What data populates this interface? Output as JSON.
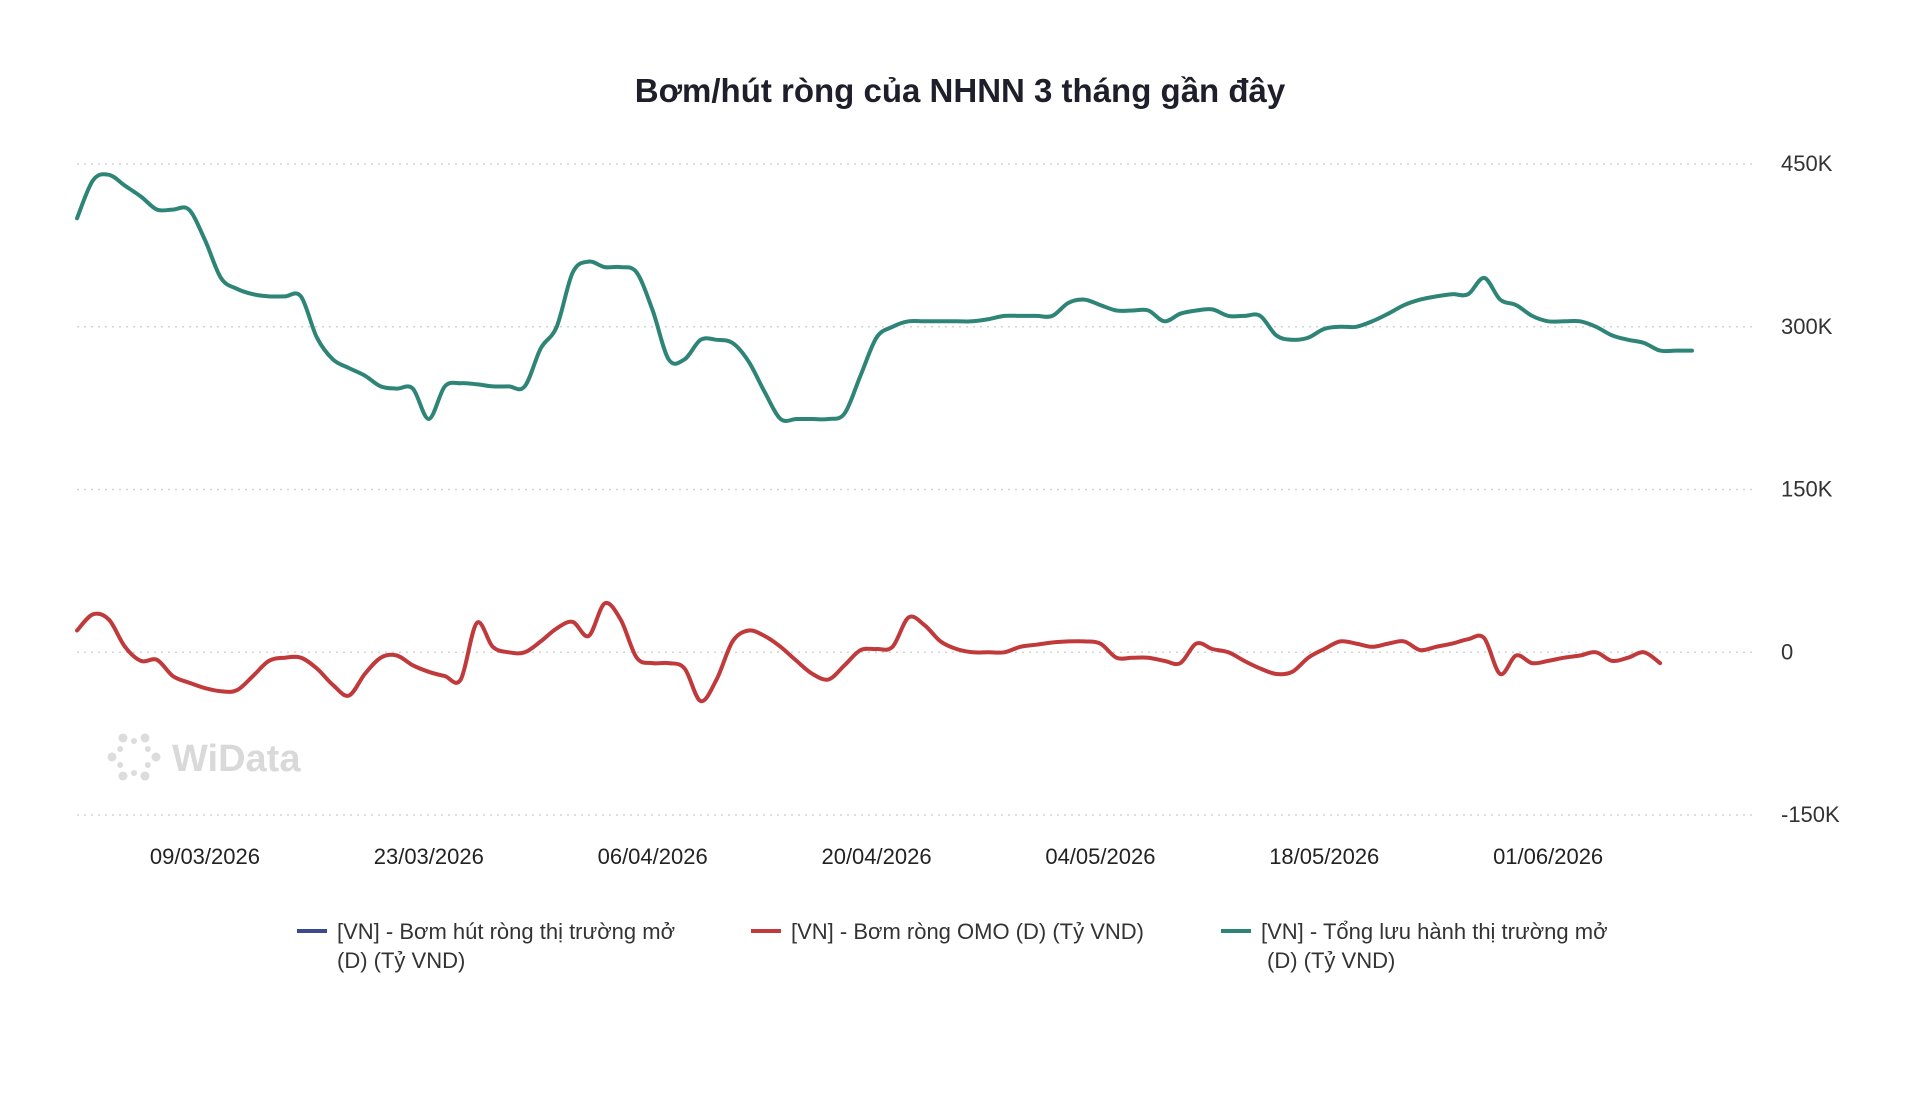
{
  "chart_data": {
    "type": "line",
    "title": "Bơm/hút ròng của NHNN 3 tháng gần đây",
    "y_ticks": [
      {
        "value": 450000,
        "label": "450K"
      },
      {
        "value": 300000,
        "label": "300K"
      },
      {
        "value": 150000,
        "label": "150K"
      },
      {
        "value": 0,
        "label": "0"
      },
      {
        "value": -150000,
        "label": "-150K"
      }
    ],
    "ylim": [
      -150000,
      450000
    ],
    "x_tick_labels": [
      "09/03/2026",
      "23/03/2026",
      "06/04/2026",
      "20/04/2026",
      "04/05/2026",
      "18/05/2026",
      "01/06/2026"
    ],
    "x_tick_dates": [
      "2026-03-09",
      "2026-03-23",
      "2026-04-06",
      "2026-04-20",
      "2026-05-04",
      "2026-05-18",
      "2026-06-01"
    ],
    "xlim": [
      "2026-03-01",
      "2026-06-14"
    ],
    "grid": "horizontal-dotted",
    "legend_position": "bottom",
    "watermark": "WiData",
    "series": [
      {
        "name": "[VN] - Bơm hút ròng thị trường mở (D) (Tỷ VND)",
        "legend_lines": [
          "[VN] - Bơm hút ròng thị trường mở",
          "(D) (Tỷ VND)"
        ],
        "color": "#3b4a8c",
        "points": []
      },
      {
        "name": "[VN] - Bơm ròng OMO (D) (Tỷ VND)",
        "legend_lines": [
          "[VN] - Bơm ròng OMO (D) (Tỷ VND)"
        ],
        "color": "#c0393b",
        "points": [
          [
            "2026-03-01",
            20000
          ],
          [
            "2026-03-02",
            35000
          ],
          [
            "2026-03-03",
            30000
          ],
          [
            "2026-03-04",
            5000
          ],
          [
            "2026-03-05",
            -8000
          ],
          [
            "2026-03-06",
            -7000
          ],
          [
            "2026-03-07",
            -22000
          ],
          [
            "2026-03-08",
            -28000
          ],
          [
            "2026-03-09",
            -33000
          ],
          [
            "2026-03-10",
            -36000
          ],
          [
            "2026-03-11",
            -35000
          ],
          [
            "2026-03-12",
            -22000
          ],
          [
            "2026-03-13",
            -8000
          ],
          [
            "2026-03-14",
            -5000
          ],
          [
            "2026-03-15",
            -5000
          ],
          [
            "2026-03-16",
            -15000
          ],
          [
            "2026-03-17",
            -30000
          ],
          [
            "2026-03-18",
            -40000
          ],
          [
            "2026-03-19",
            -20000
          ],
          [
            "2026-03-20",
            -5000
          ],
          [
            "2026-03-21",
            -3000
          ],
          [
            "2026-03-22",
            -12000
          ],
          [
            "2026-03-23",
            -18000
          ],
          [
            "2026-03-24",
            -22000
          ],
          [
            "2026-03-25",
            -25000
          ],
          [
            "2026-03-26",
            27000
          ],
          [
            "2026-03-27",
            5000
          ],
          [
            "2026-03-28",
            0
          ],
          [
            "2026-03-29",
            0
          ],
          [
            "2026-03-30",
            10000
          ],
          [
            "2026-03-31",
            22000
          ],
          [
            "2026-04-01",
            28000
          ],
          [
            "2026-04-02",
            15000
          ],
          [
            "2026-04-03",
            45000
          ],
          [
            "2026-04-04",
            30000
          ],
          [
            "2026-04-05",
            -5000
          ],
          [
            "2026-04-06",
            -10000
          ],
          [
            "2026-04-07",
            -10000
          ],
          [
            "2026-04-08",
            -15000
          ],
          [
            "2026-04-09",
            -45000
          ],
          [
            "2026-04-10",
            -25000
          ],
          [
            "2026-04-11",
            10000
          ],
          [
            "2026-04-12",
            20000
          ],
          [
            "2026-04-13",
            15000
          ],
          [
            "2026-04-14",
            5000
          ],
          [
            "2026-04-15",
            -8000
          ],
          [
            "2026-04-16",
            -20000
          ],
          [
            "2026-04-17",
            -25000
          ],
          [
            "2026-04-18",
            -12000
          ],
          [
            "2026-04-19",
            2000
          ],
          [
            "2026-04-20",
            3000
          ],
          [
            "2026-04-21",
            5000
          ],
          [
            "2026-04-22",
            32000
          ],
          [
            "2026-04-23",
            25000
          ],
          [
            "2026-04-24",
            10000
          ],
          [
            "2026-04-25",
            3000
          ],
          [
            "2026-04-26",
            0
          ],
          [
            "2026-04-27",
            0
          ],
          [
            "2026-04-28",
            0
          ],
          [
            "2026-04-29",
            5000
          ],
          [
            "2026-04-30",
            7000
          ],
          [
            "2026-05-01",
            9000
          ],
          [
            "2026-05-02",
            10000
          ],
          [
            "2026-05-03",
            10000
          ],
          [
            "2026-05-04",
            8000
          ],
          [
            "2026-05-05",
            -5000
          ],
          [
            "2026-05-06",
            -5000
          ],
          [
            "2026-05-07",
            -5000
          ],
          [
            "2026-05-08",
            -8000
          ],
          [
            "2026-05-09",
            -10000
          ],
          [
            "2026-05-10",
            8000
          ],
          [
            "2026-05-11",
            3000
          ],
          [
            "2026-05-12",
            0
          ],
          [
            "2026-05-13",
            -8000
          ],
          [
            "2026-05-14",
            -15000
          ],
          [
            "2026-05-15",
            -20000
          ],
          [
            "2026-05-16",
            -18000
          ],
          [
            "2026-05-17",
            -5000
          ],
          [
            "2026-05-18",
            3000
          ],
          [
            "2026-05-19",
            10000
          ],
          [
            "2026-05-20",
            8000
          ],
          [
            "2026-05-21",
            5000
          ],
          [
            "2026-05-22",
            8000
          ],
          [
            "2026-05-23",
            10000
          ],
          [
            "2026-05-24",
            2000
          ],
          [
            "2026-05-25",
            5000
          ],
          [
            "2026-05-26",
            8000
          ],
          [
            "2026-05-27",
            12000
          ],
          [
            "2026-05-28",
            13000
          ],
          [
            "2026-05-29",
            -20000
          ],
          [
            "2026-05-30",
            -3000
          ],
          [
            "2026-05-31",
            -10000
          ],
          [
            "2026-06-01",
            -8000
          ],
          [
            "2026-06-02",
            -5000
          ],
          [
            "2026-06-03",
            -3000
          ],
          [
            "2026-06-04",
            0
          ],
          [
            "2026-06-05",
            -8000
          ],
          [
            "2026-06-06",
            -5000
          ],
          [
            "2026-06-07",
            0
          ],
          [
            "2026-06-08",
            -10000
          ]
        ]
      },
      {
        "name": "[VN] - Tổng lưu hành thị trường mở (D) (Tỷ VND)",
        "legend_lines": [
          "[VN] - Tổng lưu hành thị trường mở",
          "(D) (Tỷ VND)"
        ],
        "color": "#2e8577",
        "points": [
          [
            "2026-03-01",
            400000
          ],
          [
            "2026-03-02",
            435000
          ],
          [
            "2026-03-03",
            440000
          ],
          [
            "2026-03-04",
            430000
          ],
          [
            "2026-03-05",
            420000
          ],
          [
            "2026-03-06",
            408000
          ],
          [
            "2026-03-07",
            408000
          ],
          [
            "2026-03-08",
            408000
          ],
          [
            "2026-03-09",
            380000
          ],
          [
            "2026-03-10",
            345000
          ],
          [
            "2026-03-11",
            335000
          ],
          [
            "2026-03-12",
            330000
          ],
          [
            "2026-03-13",
            328000
          ],
          [
            "2026-03-14",
            328000
          ],
          [
            "2026-03-15",
            328000
          ],
          [
            "2026-03-16",
            290000
          ],
          [
            "2026-03-17",
            270000
          ],
          [
            "2026-03-18",
            262000
          ],
          [
            "2026-03-19",
            255000
          ],
          [
            "2026-03-20",
            245000
          ],
          [
            "2026-03-21",
            243000
          ],
          [
            "2026-03-22",
            243000
          ],
          [
            "2026-03-23",
            215000
          ],
          [
            "2026-03-24",
            245000
          ],
          [
            "2026-03-25",
            248000
          ],
          [
            "2026-03-26",
            247000
          ],
          [
            "2026-03-27",
            245000
          ],
          [
            "2026-03-28",
            245000
          ],
          [
            "2026-03-29",
            245000
          ],
          [
            "2026-03-30",
            280000
          ],
          [
            "2026-03-31",
            300000
          ],
          [
            "2026-04-01",
            350000
          ],
          [
            "2026-04-02",
            360000
          ],
          [
            "2026-04-03",
            355000
          ],
          [
            "2026-04-04",
            355000
          ],
          [
            "2026-04-05",
            350000
          ],
          [
            "2026-04-06",
            315000
          ],
          [
            "2026-04-07",
            270000
          ],
          [
            "2026-04-08",
            270000
          ],
          [
            "2026-04-09",
            288000
          ],
          [
            "2026-04-10",
            288000
          ],
          [
            "2026-04-11",
            285000
          ],
          [
            "2026-04-12",
            268000
          ],
          [
            "2026-04-13",
            240000
          ],
          [
            "2026-04-14",
            215000
          ],
          [
            "2026-04-15",
            215000
          ],
          [
            "2026-04-16",
            215000
          ],
          [
            "2026-04-17",
            215000
          ],
          [
            "2026-04-18",
            220000
          ],
          [
            "2026-04-19",
            255000
          ],
          [
            "2026-04-20",
            290000
          ],
          [
            "2026-04-21",
            300000
          ],
          [
            "2026-04-22",
            305000
          ],
          [
            "2026-04-23",
            305000
          ],
          [
            "2026-04-24",
            305000
          ],
          [
            "2026-04-25",
            305000
          ],
          [
            "2026-04-26",
            305000
          ],
          [
            "2026-04-27",
            307000
          ],
          [
            "2026-04-28",
            310000
          ],
          [
            "2026-04-29",
            310000
          ],
          [
            "2026-04-30",
            310000
          ],
          [
            "2026-05-01",
            310000
          ],
          [
            "2026-05-02",
            322000
          ],
          [
            "2026-05-03",
            325000
          ],
          [
            "2026-05-04",
            320000
          ],
          [
            "2026-05-05",
            315000
          ],
          [
            "2026-05-06",
            315000
          ],
          [
            "2026-05-07",
            315000
          ],
          [
            "2026-05-08",
            305000
          ],
          [
            "2026-05-09",
            312000
          ],
          [
            "2026-05-10",
            315000
          ],
          [
            "2026-05-11",
            316000
          ],
          [
            "2026-05-12",
            310000
          ],
          [
            "2026-05-13",
            310000
          ],
          [
            "2026-05-14",
            310000
          ],
          [
            "2026-05-15",
            292000
          ],
          [
            "2026-05-16",
            288000
          ],
          [
            "2026-05-17",
            290000
          ],
          [
            "2026-05-18",
            298000
          ],
          [
            "2026-05-19",
            300000
          ],
          [
            "2026-05-20",
            300000
          ],
          [
            "2026-05-21",
            305000
          ],
          [
            "2026-05-22",
            312000
          ],
          [
            "2026-05-23",
            320000
          ],
          [
            "2026-05-24",
            325000
          ],
          [
            "2026-05-25",
            328000
          ],
          [
            "2026-05-26",
            330000
          ],
          [
            "2026-05-27",
            330000
          ],
          [
            "2026-05-28",
            345000
          ],
          [
            "2026-05-29",
            325000
          ],
          [
            "2026-05-30",
            320000
          ],
          [
            "2026-05-31",
            310000
          ],
          [
            "2026-06-01",
            305000
          ],
          [
            "2026-06-02",
            305000
          ],
          [
            "2026-06-03",
            305000
          ],
          [
            "2026-06-04",
            300000
          ],
          [
            "2026-06-05",
            292000
          ],
          [
            "2026-06-06",
            288000
          ],
          [
            "2026-06-07",
            285000
          ],
          [
            "2026-06-08",
            278000
          ],
          [
            "2026-06-09",
            278000
          ],
          [
            "2026-06-10",
            278000
          ]
        ]
      }
    ]
  }
}
